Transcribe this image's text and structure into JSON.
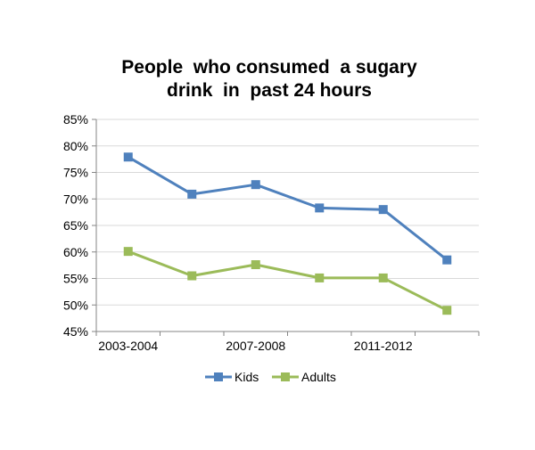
{
  "chart_data": {
    "type": "line",
    "title_lines": [
      "People  who consumed  a sugary",
      "drink  in  past 24 hours"
    ],
    "xlabel": "",
    "ylabel": "",
    "x_tick_labels": [
      "2003-2004",
      "2007-2008",
      "2011-2012"
    ],
    "x_tick_positions": [
      0,
      2,
      4
    ],
    "x_point_count": 6,
    "ylim": [
      45,
      85
    ],
    "y_ticks": [
      45,
      50,
      55,
      60,
      65,
      70,
      75,
      80,
      85
    ],
    "y_tick_suffix": "%",
    "grid": true,
    "legend_position": "bottom",
    "series": [
      {
        "name": "Kids",
        "color": "#4f81bd",
        "values": [
          77.9,
          70.9,
          72.7,
          68.3,
          68.0,
          58.5
        ]
      },
      {
        "name": "Adults",
        "color": "#9bbb59",
        "values": [
          60.1,
          55.5,
          57.6,
          55.1,
          55.1,
          49.0
        ]
      }
    ]
  }
}
